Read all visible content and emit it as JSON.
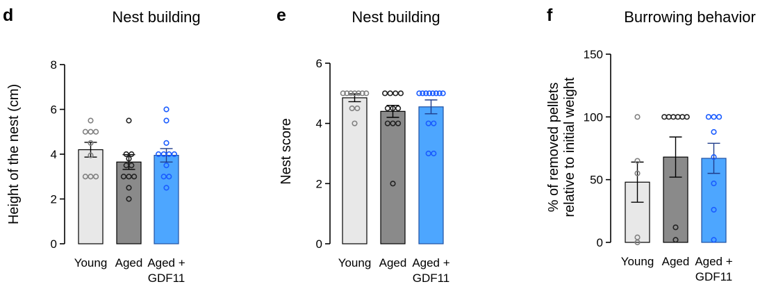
{
  "chart_data": [
    {
      "panel_letter": "d",
      "type": "bar",
      "title": "Nest building",
      "xlabel": "",
      "ylabel": "Height of the nest (cm)",
      "ylim": [
        0,
        8
      ],
      "yticks": [
        "0",
        "2",
        "4",
        "6",
        "8"
      ],
      "categories": [
        "Young",
        "Aged",
        "Aged +\nGDF11"
      ],
      "series": [
        {
          "values": [
            4.2,
            3.65,
            3.95
          ],
          "sem": [
            0.33,
            0.33,
            0.3
          ],
          "colors": [
            "#e8e8e8",
            "#8a8a8a",
            "#4da6ff"
          ]
        }
      ],
      "points": [
        [
          5.5,
          5.0,
          5.0,
          5.0,
          4.5,
          3.95,
          3.0,
          3.0,
          3.0
        ],
        [
          5.5,
          4.0,
          4.0,
          3.8,
          3.5,
          3.5,
          3.0,
          3.0,
          3.0,
          2.5,
          2.0
        ],
        [
          6.0,
          5.5,
          4.5,
          4.0,
          4.0,
          4.0,
          4.0,
          3.5,
          3.0,
          3.0,
          2.5
        ]
      ]
    },
    {
      "panel_letter": "e",
      "type": "bar",
      "title": "Nest building",
      "xlabel": "",
      "ylabel": "Nest score",
      "ylim": [
        0,
        6
      ],
      "yticks": [
        "0",
        "2",
        "4",
        "6"
      ],
      "categories": [
        "Young",
        "Aged",
        "Aged +\nGDF11"
      ],
      "series": [
        {
          "values": [
            4.85,
            4.4,
            4.55
          ],
          "sem": [
            0.13,
            0.2,
            0.23
          ],
          "colors": [
            "#e8e8e8",
            "#8a8a8a",
            "#4da6ff"
          ]
        }
      ],
      "points": [
        [
          5,
          5,
          5,
          5,
          5,
          5,
          5,
          4.5,
          4.5,
          4
        ],
        [
          5,
          5,
          5,
          5,
          4.5,
          4.5,
          4.5,
          4,
          4,
          4,
          2
        ],
        [
          5,
          5,
          5,
          5,
          5,
          5,
          5,
          5,
          4,
          4,
          3,
          3
        ]
      ]
    },
    {
      "panel_letter": "f",
      "type": "bar",
      "title": "Burrowing behavior",
      "xlabel": "",
      "ylabel": "% of removed pellets\nrelative to initial weight",
      "ylim": [
        0,
        150
      ],
      "yticks": [
        "0",
        "50",
        "100",
        "150"
      ],
      "categories": [
        "Young",
        "Aged",
        "Aged +\nGDF11"
      ],
      "series": [
        {
          "values": [
            48,
            68,
            67
          ],
          "sem": [
            16,
            16,
            12
          ],
          "colors": [
            "#e8e8e8",
            "#8a8a8a",
            "#4da6ff"
          ]
        }
      ],
      "points": [
        [
          100,
          65,
          55,
          4,
          0
        ],
        [
          100,
          100,
          100,
          100,
          100,
          100,
          12,
          2
        ],
        [
          100,
          100,
          100,
          88,
          68,
          47,
          26,
          2
        ]
      ]
    }
  ]
}
